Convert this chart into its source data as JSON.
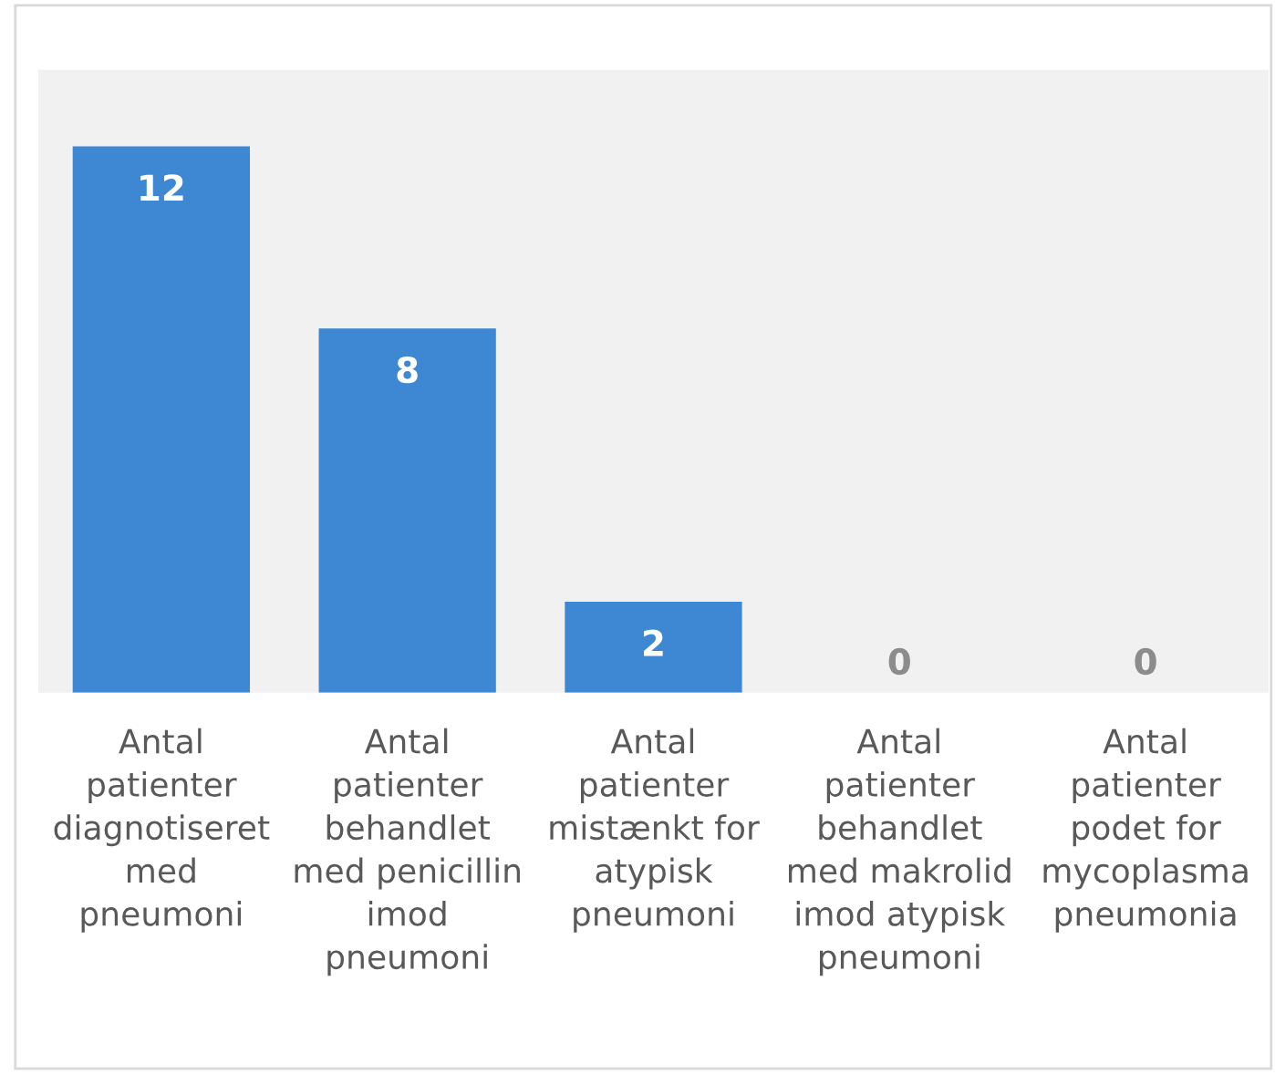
{
  "chart_data": {
    "type": "bar",
    "categories": [
      "Antal\npatienter\ndiagnotiseret\nmed\npneumoni",
      "Antal\npatienter\nbehandlet\nmed penicillin\nimod\npneumoni",
      "Antal\npatienter\nmistænkt for\natypisk\npneumoni",
      "Antal\npatienter\nbehandlet\nmed makrolid\nimod atypisk\npneumoni",
      "Antal\npatienter\npodet for\nmycoplasma\npneumonia"
    ],
    "values": [
      12,
      8,
      2,
      0,
      0
    ],
    "color": "#3d87d3",
    "data_labels": true,
    "grid": false,
    "legend": false
  }
}
